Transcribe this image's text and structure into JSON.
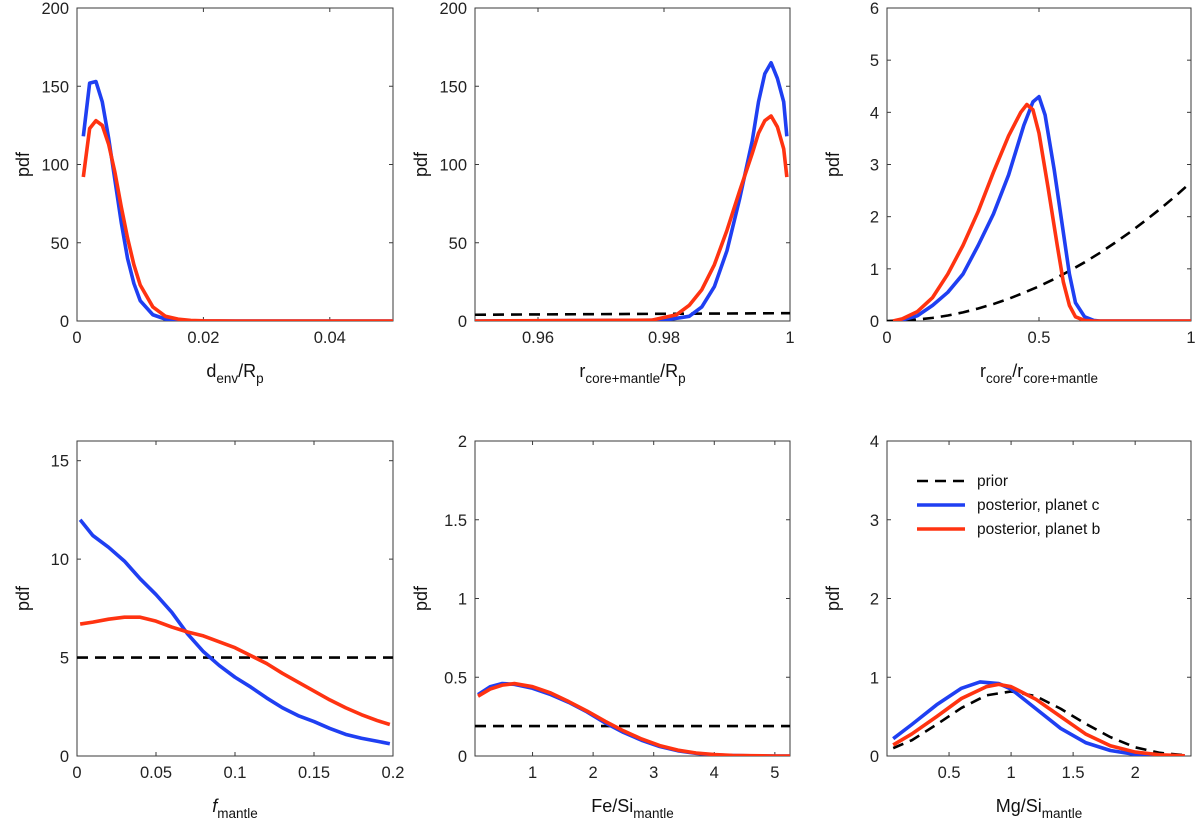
{
  "colors": {
    "prior": "#000000",
    "planet_c": "#1f3ff2",
    "planet_b": "#ff3311",
    "axis": "#3a3a3a"
  },
  "legend": {
    "placement": "top-right of bottom-right panel",
    "entries": [
      "prior",
      "posterior, planet c",
      "posterior, planet b"
    ]
  },
  "chart_data": [
    {
      "id": "p1",
      "type": "line",
      "xlabel": {
        "main": "d",
        "sub1": "env",
        "mid": "/R",
        "sub2": "p"
      },
      "ylabel": "pdf",
      "xlim": [
        0,
        0.05
      ],
      "ylim": [
        0,
        200
      ],
      "xticks": [
        0,
        0.02,
        0.04
      ],
      "xtick_labels": [
        "0",
        "0.02",
        "0.04"
      ],
      "yticks": [
        0,
        50,
        100,
        150,
        200
      ],
      "ytick_labels": [
        "0",
        "50",
        "100",
        "150",
        "200"
      ],
      "series": [
        {
          "key": "planet_c",
          "style": "solid",
          "x": [
            0.001,
            0.002,
            0.003,
            0.004,
            0.005,
            0.006,
            0.007,
            0.008,
            0.009,
            0.01,
            0.012,
            0.014,
            0.016,
            0.018,
            0.02,
            0.025,
            0.03,
            0.04,
            0.05
          ],
          "y": [
            118,
            152,
            153,
            140,
            117,
            90,
            63,
            40,
            24,
            13,
            4,
            1.2,
            0.4,
            0.1,
            0,
            0,
            0,
            0,
            0
          ]
        },
        {
          "key": "planet_b",
          "style": "solid",
          "x": [
            0.001,
            0.002,
            0.003,
            0.004,
            0.005,
            0.006,
            0.007,
            0.008,
            0.009,
            0.01,
            0.012,
            0.014,
            0.016,
            0.018,
            0.02,
            0.025,
            0.03,
            0.04,
            0.05
          ],
          "y": [
            92,
            123,
            128,
            125,
            113,
            95,
            73,
            53,
            36,
            23,
            9,
            3,
            1.2,
            0.4,
            0.1,
            0,
            0,
            0,
            0
          ]
        }
      ]
    },
    {
      "id": "p2",
      "type": "line",
      "xlabel": {
        "main": "r",
        "sub1": "core+mantle",
        "mid": "/R",
        "sub2": "p"
      },
      "ylabel": "pdf",
      "xlim": [
        0.95,
        1.0
      ],
      "ylim": [
        0,
        200
      ],
      "xticks": [
        0.96,
        0.98,
        1.0
      ],
      "xtick_labels": [
        "0.96",
        "0.98",
        "1"
      ],
      "yticks": [
        0,
        50,
        100,
        150,
        200
      ],
      "ytick_labels": [
        "0",
        "50",
        "100",
        "150",
        "200"
      ],
      "series": [
        {
          "key": "prior",
          "style": "dashed",
          "x": [
            0.95,
            1.0
          ],
          "y": [
            4,
            5
          ]
        },
        {
          "key": "planet_c",
          "style": "solid",
          "x": [
            0.95,
            0.98,
            0.984,
            0.986,
            0.988,
            0.99,
            0.992,
            0.994,
            0.995,
            0.996,
            0.997,
            0.998,
            0.999,
            0.9995
          ],
          "y": [
            0,
            0.5,
            3,
            9,
            22,
            45,
            78,
            115,
            140,
            158,
            165,
            155,
            140,
            118
          ]
        },
        {
          "key": "planet_b",
          "style": "solid",
          "x": [
            0.95,
            0.978,
            0.982,
            0.984,
            0.986,
            0.988,
            0.99,
            0.992,
            0.994,
            0.995,
            0.996,
            0.997,
            0.998,
            0.999,
            0.9995
          ],
          "y": [
            0,
            0.5,
            4,
            10,
            20,
            36,
            58,
            83,
            107,
            120,
            128,
            131,
            124,
            110,
            92
          ]
        }
      ]
    },
    {
      "id": "p3",
      "type": "line",
      "xlabel": {
        "main": "r",
        "sub1": "core",
        "mid": "/r",
        "sub2": "core+mantle"
      },
      "ylabel": "pdf",
      "xlim": [
        0,
        1
      ],
      "ylim": [
        0,
        6
      ],
      "xticks": [
        0,
        0.5,
        1
      ],
      "xtick_labels": [
        "0",
        "0.5",
        "1"
      ],
      "yticks": [
        0,
        1,
        2,
        3,
        4,
        5,
        6
      ],
      "ytick_labels": [
        "0",
        "1",
        "2",
        "3",
        "4",
        "5",
        "6"
      ],
      "series": [
        {
          "key": "prior",
          "style": "dashed",
          "x": [
            0,
            0.05,
            0.1,
            0.15,
            0.2,
            0.25,
            0.3,
            0.35,
            0.4,
            0.45,
            0.5,
            0.55,
            0.6,
            0.65,
            0.7,
            0.75,
            0.8,
            0.85,
            0.9,
            0.95,
            1.0
          ],
          "y": [
            0,
            0.007,
            0.027,
            0.06,
            0.105,
            0.165,
            0.24,
            0.325,
            0.425,
            0.54,
            0.665,
            0.805,
            0.96,
            1.125,
            1.305,
            1.5,
            1.705,
            1.925,
            2.155,
            2.4,
            2.66
          ]
        },
        {
          "key": "planet_c",
          "style": "solid",
          "x": [
            0.02,
            0.05,
            0.1,
            0.15,
            0.2,
            0.25,
            0.3,
            0.35,
            0.4,
            0.45,
            0.48,
            0.5,
            0.52,
            0.55,
            0.58,
            0.6,
            0.62,
            0.65,
            0.68,
            0.7,
            1.0
          ],
          "y": [
            0,
            0.02,
            0.1,
            0.3,
            0.55,
            0.9,
            1.45,
            2.05,
            2.8,
            3.75,
            4.2,
            4.3,
            3.95,
            2.9,
            1.7,
            0.9,
            0.35,
            0.08,
            0.01,
            0,
            0
          ]
        },
        {
          "key": "planet_b",
          "style": "solid",
          "x": [
            0.02,
            0.05,
            0.1,
            0.15,
            0.2,
            0.25,
            0.3,
            0.35,
            0.4,
            0.44,
            0.46,
            0.48,
            0.5,
            0.53,
            0.56,
            0.58,
            0.6,
            0.62,
            0.65,
            0.68,
            1.0
          ],
          "y": [
            0,
            0.04,
            0.18,
            0.45,
            0.9,
            1.45,
            2.1,
            2.85,
            3.55,
            4.0,
            4.15,
            4.05,
            3.6,
            2.55,
            1.45,
            0.75,
            0.3,
            0.08,
            0.01,
            0,
            0
          ]
        }
      ]
    },
    {
      "id": "p4",
      "type": "line",
      "xlabel": {
        "main": "f",
        "main_italic": true,
        "sub1": "mantle",
        "mid": "",
        "sub2": ""
      },
      "ylabel": "pdf",
      "xlim": [
        0,
        0.2
      ],
      "ylim": [
        0,
        16
      ],
      "xticks": [
        0,
        0.05,
        0.1,
        0.15,
        0.2
      ],
      "xtick_labels": [
        "0",
        "0.05",
        "0.1",
        "0.15",
        "0.2"
      ],
      "yticks": [
        0,
        5,
        10,
        15
      ],
      "ytick_labels": [
        "0",
        "5",
        "10",
        "15"
      ],
      "series": [
        {
          "key": "prior",
          "style": "dashed",
          "x": [
            0,
            0.2
          ],
          "y": [
            5,
            5
          ]
        },
        {
          "key": "planet_c",
          "style": "solid",
          "x": [
            0.002,
            0.01,
            0.02,
            0.03,
            0.04,
            0.05,
            0.06,
            0.07,
            0.08,
            0.09,
            0.1,
            0.11,
            0.12,
            0.13,
            0.14,
            0.15,
            0.16,
            0.17,
            0.18,
            0.19,
            0.198
          ],
          "y": [
            12.0,
            11.2,
            10.6,
            9.9,
            9.0,
            8.2,
            7.3,
            6.2,
            5.3,
            4.6,
            4.0,
            3.5,
            2.95,
            2.45,
            2.05,
            1.75,
            1.4,
            1.1,
            0.9,
            0.75,
            0.62
          ]
        },
        {
          "key": "planet_b",
          "style": "solid",
          "x": [
            0.002,
            0.01,
            0.02,
            0.03,
            0.04,
            0.05,
            0.06,
            0.07,
            0.08,
            0.09,
            0.1,
            0.11,
            0.12,
            0.13,
            0.14,
            0.15,
            0.16,
            0.17,
            0.18,
            0.19,
            0.198
          ],
          "y": [
            6.7,
            6.8,
            6.95,
            7.05,
            7.05,
            6.85,
            6.55,
            6.3,
            6.1,
            5.8,
            5.5,
            5.1,
            4.7,
            4.2,
            3.75,
            3.3,
            2.85,
            2.45,
            2.1,
            1.8,
            1.6
          ]
        }
      ]
    },
    {
      "id": "p5",
      "type": "line",
      "xlabel": {
        "main": "Fe/Si",
        "sub1": "mantle",
        "mid": "",
        "sub2": ""
      },
      "ylabel": "pdf",
      "xlim": [
        0.05,
        5.25
      ],
      "ylim": [
        0,
        2
      ],
      "xticks": [
        1,
        2,
        3,
        4,
        5
      ],
      "xtick_labels": [
        "1",
        "2",
        "3",
        "4",
        "5"
      ],
      "yticks": [
        0,
        0.5,
        1,
        1.5,
        2
      ],
      "ytick_labels": [
        "0",
        "0.5",
        "1",
        "1.5",
        "2"
      ],
      "series": [
        {
          "key": "prior",
          "style": "dashed",
          "x": [
            0.05,
            5.25
          ],
          "y": [
            0.19,
            0.19
          ]
        },
        {
          "key": "planet_c",
          "style": "solid",
          "x": [
            0.1,
            0.3,
            0.5,
            0.7,
            1.0,
            1.3,
            1.6,
            1.9,
            2.2,
            2.5,
            2.8,
            3.1,
            3.4,
            3.7,
            4.0,
            4.3,
            4.6,
            5.0,
            5.25
          ],
          "y": [
            0.39,
            0.44,
            0.46,
            0.455,
            0.43,
            0.39,
            0.34,
            0.28,
            0.21,
            0.15,
            0.1,
            0.06,
            0.033,
            0.017,
            0.007,
            0.003,
            0.001,
            0,
            0
          ]
        },
        {
          "key": "planet_b",
          "style": "solid",
          "x": [
            0.1,
            0.3,
            0.5,
            0.7,
            1.0,
            1.3,
            1.6,
            1.9,
            2.2,
            2.5,
            2.8,
            3.1,
            3.4,
            3.7,
            4.0,
            4.3,
            4.6,
            5.0,
            5.25
          ],
          "y": [
            0.38,
            0.425,
            0.45,
            0.46,
            0.44,
            0.4,
            0.345,
            0.285,
            0.22,
            0.16,
            0.108,
            0.066,
            0.037,
            0.019,
            0.009,
            0.004,
            0.002,
            0,
            0
          ]
        }
      ]
    },
    {
      "id": "p6",
      "type": "line",
      "xlabel": {
        "main": "Mg/Si",
        "sub1": "mantle",
        "mid": "",
        "sub2": ""
      },
      "ylabel": "pdf",
      "xlim": [
        0,
        2.45
      ],
      "ylim": [
        0,
        4
      ],
      "xticks": [
        0.5,
        1,
        1.5,
        2
      ],
      "xtick_labels": [
        "0.5",
        "1",
        "1.5",
        "2"
      ],
      "yticks": [
        0,
        1,
        2,
        3,
        4
      ],
      "ytick_labels": [
        "0",
        "1",
        "2",
        "3",
        "4"
      ],
      "series": [
        {
          "key": "prior",
          "style": "dashed",
          "x": [
            0.05,
            0.2,
            0.4,
            0.6,
            0.8,
            1.0,
            1.2,
            1.4,
            1.6,
            1.8,
            2.0,
            2.2,
            2.4
          ],
          "y": [
            0.1,
            0.2,
            0.4,
            0.61,
            0.77,
            0.82,
            0.76,
            0.6,
            0.41,
            0.24,
            0.11,
            0.04,
            0.01
          ]
        },
        {
          "key": "planet_c",
          "style": "solid",
          "x": [
            0.05,
            0.2,
            0.4,
            0.6,
            0.75,
            0.9,
            1.0,
            1.2,
            1.4,
            1.6,
            1.8,
            2.0,
            2.2,
            2.4
          ],
          "y": [
            0.22,
            0.4,
            0.65,
            0.86,
            0.94,
            0.92,
            0.85,
            0.6,
            0.35,
            0.17,
            0.07,
            0.02,
            0.005,
            0.001
          ]
        },
        {
          "key": "planet_b",
          "style": "solid",
          "x": [
            0.05,
            0.2,
            0.4,
            0.6,
            0.8,
            0.9,
            1.0,
            1.2,
            1.4,
            1.6,
            1.8,
            2.0,
            2.2,
            2.4
          ],
          "y": [
            0.14,
            0.28,
            0.5,
            0.73,
            0.88,
            0.91,
            0.88,
            0.72,
            0.5,
            0.28,
            0.13,
            0.05,
            0.015,
            0.003
          ]
        }
      ]
    }
  ]
}
